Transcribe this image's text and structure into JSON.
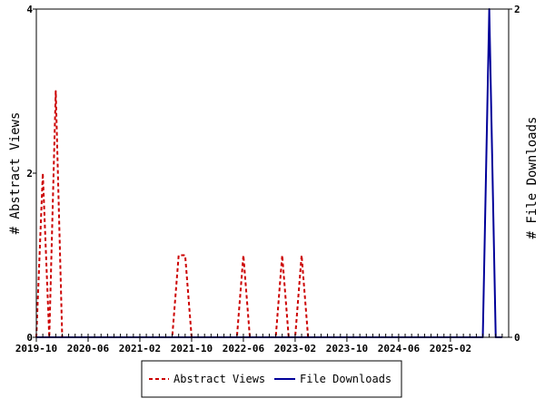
{
  "chart_data": {
    "type": "line",
    "x_ticks": [
      "2019-10",
      "2020-06",
      "2021-02",
      "2021-10",
      "2022-06",
      "2023-02",
      "2023-10",
      "2024-06",
      "2025-02"
    ],
    "x_range": [
      "2019-10",
      "2025-11"
    ],
    "ylabel_left": "# Abstract Views",
    "ylabel_right": "# File Downloads",
    "yticks_left": [
      "0",
      "2",
      "4"
    ],
    "yticks_right": [
      "0",
      "2"
    ],
    "ylim_left": [
      0,
      4
    ],
    "ylim_right": [
      0,
      2
    ],
    "grid": false,
    "legend_position": "bottom-center",
    "series": [
      {
        "name": "Abstract Views",
        "axis": "left",
        "color": "#cc0000",
        "style": "dashed",
        "points": [
          [
            "2019-10",
            0
          ],
          [
            "2019-11",
            2
          ],
          [
            "2019-12",
            0
          ],
          [
            "2020-01",
            3
          ],
          [
            "2020-02",
            0
          ],
          [
            "2021-07",
            0
          ],
          [
            "2021-08",
            1
          ],
          [
            "2021-09",
            1
          ],
          [
            "2021-10",
            0
          ],
          [
            "2022-05",
            0
          ],
          [
            "2022-06",
            1
          ],
          [
            "2022-07",
            0
          ],
          [
            "2022-11",
            0
          ],
          [
            "2022-12",
            1
          ],
          [
            "2023-01",
            0
          ],
          [
            "2023-02",
            0
          ],
          [
            "2023-03",
            1
          ],
          [
            "2023-04",
            0
          ]
        ]
      },
      {
        "name": "File Downloads",
        "axis": "right",
        "color": "#000099",
        "style": "solid",
        "points": [
          [
            "2019-10",
            0
          ],
          [
            "2025-07",
            0
          ],
          [
            "2025-08",
            2
          ],
          [
            "2025-09",
            0
          ],
          [
            "2025-10",
            0
          ]
        ]
      }
    ]
  }
}
